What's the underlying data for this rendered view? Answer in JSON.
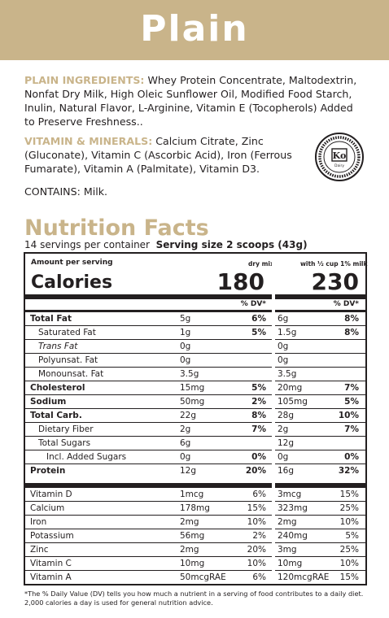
{
  "banner": {
    "title": "Plain"
  },
  "ingredients": {
    "label": "PLAIN INGREDIENTS:",
    "text": " Whey Protein Concentrate, Maltodextrin, Nonfat Dry Milk, High Oleic Sunflower Oil, Modified Food Starch, Inulin, Natural Flavor, L-Arginine, Vitamin E (Tocopherols) Added to Preserve Freshness.."
  },
  "vitamins": {
    "label": "VITAMIN & MINERALS:",
    "text": " Calcium Citrate, Zinc (Gluconate), Vitamin C (Ascorbic Acid), Iron (Ferrous Fumarate), Vitamin A (Palmitate), Vitamin D3."
  },
  "contains": "CONTAINS: Milk.",
  "kosher": {
    "mark": "Ko",
    "sub": "Dairy"
  },
  "nutrition": {
    "title": "Nutrition Facts",
    "servings": "14 servings per container",
    "serving_size": "Serving size 2 scoops (43g)",
    "amount_per_serving": "Amount per serving",
    "col1_header": "dry mix",
    "col2_header": "with ½ cup 1% milk",
    "calories_label": "Calories",
    "calories_dry": "180",
    "calories_milk": "230",
    "dv_header": "% DV*",
    "macros": [
      {
        "name": "Total Fat",
        "amt1": "5g",
        "dv1": "6%",
        "amt2": "6g",
        "dv2": "8%",
        "style": "bold",
        "indent": 0
      },
      {
        "name": "Saturated Fat",
        "amt1": "1g",
        "dv1": "5%",
        "amt2": "1.5g",
        "dv2": "8%",
        "style": "",
        "indent": 1
      },
      {
        "name": "Trans Fat",
        "amt1": "0g",
        "dv1": "",
        "amt2": "0g",
        "dv2": "",
        "style": "it",
        "indent": 1
      },
      {
        "name": "Polyunsat. Fat",
        "amt1": "0g",
        "dv1": "",
        "amt2": "0g",
        "dv2": "",
        "style": "",
        "indent": 1
      },
      {
        "name": "Monounsat. Fat",
        "amt1": "3.5g",
        "dv1": "",
        "amt2": "3.5g",
        "dv2": "",
        "style": "",
        "indent": 1
      },
      {
        "name": "Cholesterol",
        "amt1": "15mg",
        "dv1": "5%",
        "amt2": "20mg",
        "dv2": "7%",
        "style": "bold",
        "indent": 0
      },
      {
        "name": "Sodium",
        "amt1": "50mg",
        "dv1": "2%",
        "amt2": "105mg",
        "dv2": "5%",
        "style": "bold",
        "indent": 0
      },
      {
        "name": "Total Carb.",
        "amt1": "22g",
        "dv1": "8%",
        "amt2": "28g",
        "dv2": "10%",
        "style": "bold",
        "indent": 0
      },
      {
        "name": "Dietary Fiber",
        "amt1": "2g",
        "dv1": "7%",
        "amt2": "2g",
        "dv2": "7%",
        "style": "",
        "indent": 1
      },
      {
        "name": "Total Sugars",
        "amt1": "6g",
        "dv1": "",
        "amt2": "12g",
        "dv2": "",
        "style": "",
        "indent": 1
      },
      {
        "name": "Incl. Added Sugars",
        "amt1": "0g",
        "dv1": "0%",
        "amt2": "0g",
        "dv2": "0%",
        "style": "",
        "indent": 2
      },
      {
        "name": "Protein",
        "amt1": "12g",
        "dv1": "20%",
        "amt2": "16g",
        "dv2": "32%",
        "style": "bold",
        "indent": 0
      }
    ],
    "micros": [
      {
        "name": "Vitamin D",
        "amt1": "1mcg",
        "dv1": "6%",
        "amt2": "3mcg",
        "dv2": "15%"
      },
      {
        "name": "Calcium",
        "amt1": "178mg",
        "dv1": "15%",
        "amt2": "323mg",
        "dv2": "25%"
      },
      {
        "name": "Iron",
        "amt1": "2mg",
        "dv1": "10%",
        "amt2": "2mg",
        "dv2": "10%"
      },
      {
        "name": "Potassium",
        "amt1": "56mg",
        "dv1": "2%",
        "amt2": "240mg",
        "dv2": "5%"
      },
      {
        "name": "Zinc",
        "amt1": "2mg",
        "dv1": "20%",
        "amt2": "3mg",
        "dv2": "25%"
      },
      {
        "name": "Vitamin C",
        "amt1": "10mg",
        "dv1": "10%",
        "amt2": "10mg",
        "dv2": "10%"
      },
      {
        "name": "Vitamin A",
        "amt1": "50mcgRAE",
        "dv1": "6%",
        "amt2": "120mcgRAE",
        "dv2": "15%"
      }
    ],
    "footnote": "*The % Daily Value (DV) tells you how much a nutrient in a serving of food contributes to a daily diet. 2,000 calories a day is used for general nutrition advice."
  },
  "colors": {
    "accent": "#c9b48a",
    "text": "#231f20"
  }
}
